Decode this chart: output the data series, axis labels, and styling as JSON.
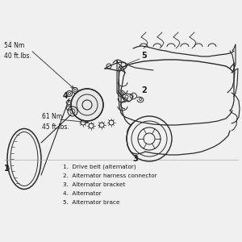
{
  "bg_color": "#f0f0f0",
  "line_color": "#2a2a2a",
  "text_color": "#1a1a1a",
  "torque_1": "54 Nm\n40 ft.lbs.",
  "torque_2": "61 Nm\n45 ft.lbs.",
  "legend_items": [
    "1.  Drive belt (alternator)",
    "2.  Alternator harness connector",
    "3.  Alternator bracket",
    "4.  Alternator",
    "5.  Alternator brace"
  ],
  "figsize": [
    3.0,
    3.0
  ],
  "dpi": 100
}
